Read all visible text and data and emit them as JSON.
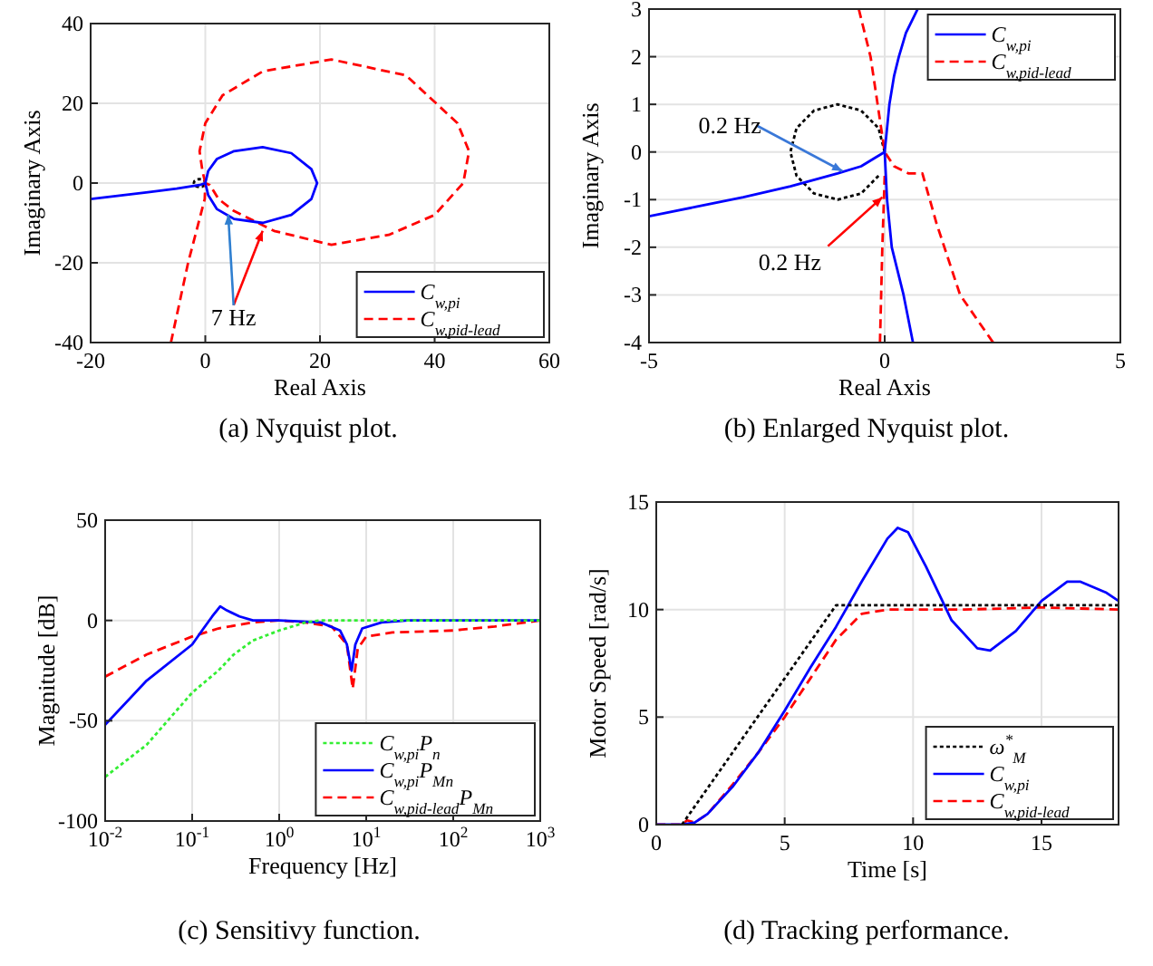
{
  "chart_data": [
    {
      "type": "line",
      "title": "(a) Nyquist plot.",
      "xlabel": "Real Axis",
      "ylabel": "Imaginary Axis",
      "xlim": [
        -20,
        60
      ],
      "ylim": [
        -40,
        40
      ],
      "xticks": [
        -20,
        0,
        20,
        40,
        60
      ],
      "yticks": [
        -40,
        -20,
        0,
        20,
        40
      ],
      "grid": true,
      "legend": "bottom right",
      "series": [
        {
          "name": "C$_{w,pi}$",
          "color": "#0000ff",
          "line_style": "solid",
          "x": [
            -20,
            -10,
            -5,
            -2,
            -1,
            0,
            0.5,
            2,
            5,
            10,
            15,
            18.5,
            19.5,
            18.5,
            15,
            10,
            5,
            2,
            0.5,
            0
          ],
          "values": [
            -4,
            -2.3,
            -1.4,
            -0.7,
            -0.5,
            0,
            3,
            6,
            8,
            9,
            7.5,
            3.5,
            0,
            -4,
            -8,
            -10,
            -9,
            -6.5,
            -3,
            0
          ]
        },
        {
          "name": "C$_{w,pid-lead}$",
          "color": "#ff0000",
          "line_style": "dashed",
          "x": [
            -6,
            -3,
            -0.1,
            0,
            0.8,
            2.3,
            5,
            12,
            22,
            32,
            40,
            45,
            46,
            44,
            35,
            22,
            10,
            3,
            0,
            -1,
            -0.5,
            0
          ],
          "values": [
            -40,
            -20,
            -4,
            0,
            -0.5,
            -4,
            -7,
            -12,
            -15.5,
            -13,
            -8,
            0,
            8,
            15,
            27,
            31,
            28,
            22,
            15,
            8,
            3,
            0
          ]
        },
        {
          "color": "#000000",
          "line_style": "dotted",
          "x": [
            0,
            -0.1,
            -0.5,
            -1,
            -1.5,
            -1.9,
            -2,
            -1.9,
            -1.5,
            -1,
            -0.5,
            -0.1
          ],
          "values": [
            0,
            0.5,
            0.9,
            1,
            0.9,
            0.5,
            0,
            -0.5,
            -0.9,
            -1,
            -0.9,
            -0.5
          ]
        }
      ],
      "annotations": [
        {
          "text": "7 Hz",
          "x": 10,
          "y": -12
        }
      ]
    },
    {
      "type": "line",
      "title": "(b) Enlarged Nyquist plot.",
      "xlabel": "Real Axis",
      "ylabel": "Imaginary Axis",
      "xlim": [
        -5,
        5
      ],
      "ylim": [
        -4,
        3
      ],
      "xticks": [
        -5,
        0,
        5
      ],
      "yticks": [
        -4,
        -3,
        -2,
        -1,
        0,
        1,
        2,
        3
      ],
      "grid": true,
      "legend": "top right",
      "series": [
        {
          "name": "C$_{w,pi}$",
          "color": "#0000ff",
          "line_style": "solid",
          "x": [
            -5,
            -4,
            -3,
            -2,
            -1,
            -0.5,
            -0.2,
            0,
            0.1,
            0.2,
            0.3,
            0.45,
            0.7
          ],
          "values": [
            -1.35,
            -1.15,
            -0.95,
            -0.72,
            -0.45,
            -0.3,
            -0.12,
            0,
            1,
            1.6,
            2,
            2.5,
            3
          ]
        },
        {
          "color": "#0000ff",
          "line_style": "solid",
          "x": [
            0,
            0.05,
            0.15,
            0.4,
            0.6
          ],
          "values": [
            0,
            -1,
            -2,
            -3,
            -4
          ]
        },
        {
          "name": "C$_{w,pid-lead}$",
          "color": "#ff0000",
          "line_style": "dashed",
          "x": [
            -0.55,
            -0.3,
            -0.15,
            0,
            0.2,
            0.5,
            0.8,
            1.1,
            1.6,
            2.3
          ],
          "values": [
            3,
            2,
            1,
            0,
            -0.3,
            -0.45,
            -0.45,
            -1.5,
            -3,
            -4
          ]
        },
        {
          "color": "#ff0000",
          "line_style": "dashed",
          "x": [
            -0.1,
            -0.05,
            0
          ],
          "values": [
            -4,
            -2,
            -0.5
          ]
        },
        {
          "color": "#000000",
          "line_style": "dotted",
          "x": [
            0,
            -0.13,
            -0.5,
            -1,
            -1.5,
            -1.87,
            -2,
            -1.87,
            -1.5,
            -1,
            -0.5,
            -0.13
          ],
          "values": [
            0,
            0.5,
            0.87,
            1,
            0.87,
            0.5,
            0,
            -0.5,
            -0.87,
            -1,
            -0.87,
            -0.5
          ]
        }
      ],
      "annotations": [
        {
          "text": "0.2 Hz",
          "x": -0.9,
          "y": -0.4
        },
        {
          "text": "0.2 Hz",
          "x": -0.05,
          "y": -0.95
        }
      ]
    },
    {
      "type": "line",
      "title": "(c) Sensitivy function.",
      "xlabel": "Frequency [Hz]",
      "ylabel": "Magnitude [dB]",
      "log": "x",
      "xlim": [
        0.01,
        1000
      ],
      "ylim": [
        -100,
        50
      ],
      "xticks": [
        {
          "value": 0.01,
          "label": "10$^{-2}$"
        },
        {
          "value": 0.1,
          "label": "10$^{-1}$"
        },
        {
          "value": 1,
          "label": "10$^{0}$"
        },
        {
          "value": 10,
          "label": "10$^{1}$"
        },
        {
          "value": 100,
          "label": "10$^{2}$"
        },
        {
          "value": 1000,
          "label": "10$^{3}$"
        }
      ],
      "yticks": [
        -100,
        -50,
        0,
        50
      ],
      "grid": true,
      "legend": "bottom right",
      "series": [
        {
          "name": "C$_{w,pi}$P$_{n}$",
          "color": "#33ee33",
          "line_style": "dotted",
          "x": [
            0.01,
            0.03,
            0.1,
            0.2,
            0.3,
            0.5,
            1,
            2,
            3,
            10,
            1000
          ],
          "values": [
            -78,
            -62,
            -36,
            -25,
            -17,
            -10,
            -5,
            -1,
            0,
            0,
            0
          ]
        },
        {
          "name": "C$_{w,pi}$P$_{Mn}$",
          "color": "#0000ff",
          "line_style": "solid",
          "x": [
            0.01,
            0.03,
            0.1,
            0.13,
            0.17,
            0.21,
            0.25,
            0.35,
            0.5,
            1,
            3,
            5,
            6,
            6.8,
            7.5,
            9,
            15,
            30,
            1000
          ],
          "values": [
            -52,
            -30,
            -12,
            -5,
            2,
            7,
            5,
            2,
            0,
            0,
            -1,
            -5,
            -12,
            -25,
            -12,
            -4,
            -1,
            0,
            0
          ]
        },
        {
          "name": "C$_{w,pid-lead}$P$_{Mn}$",
          "color": "#ff0000",
          "line_style": "dashed",
          "x": [
            0.01,
            0.03,
            0.1,
            0.2,
            0.5,
            1,
            2,
            4,
            6,
            7,
            8,
            10,
            20,
            100,
            300,
            1000
          ],
          "values": [
            -28,
            -17,
            -8,
            -4,
            -1,
            0,
            -1,
            -3,
            -12,
            -34,
            -14,
            -8,
            -6,
            -5,
            -3,
            0
          ]
        }
      ]
    },
    {
      "type": "line",
      "title": "(d) Tracking performance.",
      "xlabel": "Time [s]",
      "ylabel": "Motor Speed [rad/s]",
      "xlim": [
        0,
        18
      ],
      "ylim": [
        0,
        15
      ],
      "xticks": [
        0,
        5,
        10,
        15
      ],
      "yticks": [
        0,
        5,
        10,
        15
      ],
      "grid": true,
      "legend": "bottom right",
      "series": [
        {
          "name": "ω$^{*}$$_{M}$",
          "color": "#000000",
          "line_style": "dotted",
          "x": [
            1,
            7,
            18
          ],
          "values": [
            0,
            10.2,
            10.2
          ]
        },
        {
          "name": "C$_{w,pi}$",
          "color": "#0000ff",
          "line_style": "solid",
          "x": [
            0,
            1,
            1.5,
            2,
            3,
            4,
            5,
            6,
            7,
            8,
            9,
            9.4,
            9.8,
            10.5,
            11.5,
            12.5,
            13,
            14,
            15,
            16,
            16.5,
            17.5,
            18
          ],
          "values": [
            0,
            0,
            0.1,
            0.5,
            1.8,
            3.4,
            5.3,
            7.3,
            9.2,
            11.3,
            13.3,
            13.8,
            13.6,
            12,
            9.5,
            8.2,
            8.1,
            9,
            10.4,
            11.3,
            11.3,
            10.8,
            10.4
          ]
        },
        {
          "name": "C$_{w,pid-lead}$",
          "color": "#ff0000",
          "line_style": "dashed",
          "x": [
            0,
            1,
            1.2,
            1.5,
            2,
            3,
            4,
            5,
            6,
            7,
            8,
            9,
            12,
            15,
            18
          ],
          "values": [
            0,
            0,
            0.2,
            0.1,
            0.5,
            1.9,
            3.4,
            5,
            6.8,
            8.6,
            9.8,
            10,
            10,
            10.1,
            10
          ]
        }
      ]
    }
  ]
}
